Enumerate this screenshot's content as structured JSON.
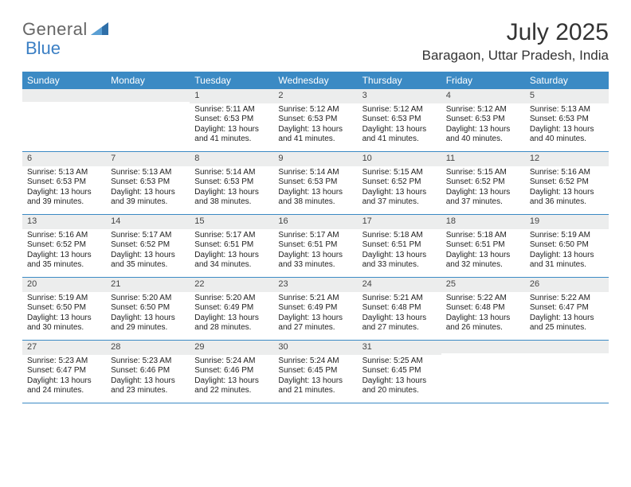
{
  "logo": {
    "text1": "General",
    "text2": "Blue"
  },
  "title": "July 2025",
  "location": "Baragaon, Uttar Pradesh, India",
  "colors": {
    "header_bg": "#3b8ac4",
    "header_text": "#ffffff",
    "daynum_bg": "#eceded",
    "row_border": "#3b8ac4",
    "body_text": "#222222",
    "logo_gray": "#666666",
    "logo_blue": "#3b7fc4"
  },
  "daynames": [
    "Sunday",
    "Monday",
    "Tuesday",
    "Wednesday",
    "Thursday",
    "Friday",
    "Saturday"
  ],
  "weeks": [
    [
      {
        "n": "",
        "sr": "",
        "ss": "",
        "dl": ""
      },
      {
        "n": "",
        "sr": "",
        "ss": "",
        "dl": ""
      },
      {
        "n": "1",
        "sr": "5:11 AM",
        "ss": "6:53 PM",
        "dl": "13 hours and 41 minutes."
      },
      {
        "n": "2",
        "sr": "5:12 AM",
        "ss": "6:53 PM",
        "dl": "13 hours and 41 minutes."
      },
      {
        "n": "3",
        "sr": "5:12 AM",
        "ss": "6:53 PM",
        "dl": "13 hours and 41 minutes."
      },
      {
        "n": "4",
        "sr": "5:12 AM",
        "ss": "6:53 PM",
        "dl": "13 hours and 40 minutes."
      },
      {
        "n": "5",
        "sr": "5:13 AM",
        "ss": "6:53 PM",
        "dl": "13 hours and 40 minutes."
      }
    ],
    [
      {
        "n": "6",
        "sr": "5:13 AM",
        "ss": "6:53 PM",
        "dl": "13 hours and 39 minutes."
      },
      {
        "n": "7",
        "sr": "5:13 AM",
        "ss": "6:53 PM",
        "dl": "13 hours and 39 minutes."
      },
      {
        "n": "8",
        "sr": "5:14 AM",
        "ss": "6:53 PM",
        "dl": "13 hours and 38 minutes."
      },
      {
        "n": "9",
        "sr": "5:14 AM",
        "ss": "6:53 PM",
        "dl": "13 hours and 38 minutes."
      },
      {
        "n": "10",
        "sr": "5:15 AM",
        "ss": "6:52 PM",
        "dl": "13 hours and 37 minutes."
      },
      {
        "n": "11",
        "sr": "5:15 AM",
        "ss": "6:52 PM",
        "dl": "13 hours and 37 minutes."
      },
      {
        "n": "12",
        "sr": "5:16 AM",
        "ss": "6:52 PM",
        "dl": "13 hours and 36 minutes."
      }
    ],
    [
      {
        "n": "13",
        "sr": "5:16 AM",
        "ss": "6:52 PM",
        "dl": "13 hours and 35 minutes."
      },
      {
        "n": "14",
        "sr": "5:17 AM",
        "ss": "6:52 PM",
        "dl": "13 hours and 35 minutes."
      },
      {
        "n": "15",
        "sr": "5:17 AM",
        "ss": "6:51 PM",
        "dl": "13 hours and 34 minutes."
      },
      {
        "n": "16",
        "sr": "5:17 AM",
        "ss": "6:51 PM",
        "dl": "13 hours and 33 minutes."
      },
      {
        "n": "17",
        "sr": "5:18 AM",
        "ss": "6:51 PM",
        "dl": "13 hours and 33 minutes."
      },
      {
        "n": "18",
        "sr": "5:18 AM",
        "ss": "6:51 PM",
        "dl": "13 hours and 32 minutes."
      },
      {
        "n": "19",
        "sr": "5:19 AM",
        "ss": "6:50 PM",
        "dl": "13 hours and 31 minutes."
      }
    ],
    [
      {
        "n": "20",
        "sr": "5:19 AM",
        "ss": "6:50 PM",
        "dl": "13 hours and 30 minutes."
      },
      {
        "n": "21",
        "sr": "5:20 AM",
        "ss": "6:50 PM",
        "dl": "13 hours and 29 minutes."
      },
      {
        "n": "22",
        "sr": "5:20 AM",
        "ss": "6:49 PM",
        "dl": "13 hours and 28 minutes."
      },
      {
        "n": "23",
        "sr": "5:21 AM",
        "ss": "6:49 PM",
        "dl": "13 hours and 27 minutes."
      },
      {
        "n": "24",
        "sr": "5:21 AM",
        "ss": "6:48 PM",
        "dl": "13 hours and 27 minutes."
      },
      {
        "n": "25",
        "sr": "5:22 AM",
        "ss": "6:48 PM",
        "dl": "13 hours and 26 minutes."
      },
      {
        "n": "26",
        "sr": "5:22 AM",
        "ss": "6:47 PM",
        "dl": "13 hours and 25 minutes."
      }
    ],
    [
      {
        "n": "27",
        "sr": "5:23 AM",
        "ss": "6:47 PM",
        "dl": "13 hours and 24 minutes."
      },
      {
        "n": "28",
        "sr": "5:23 AM",
        "ss": "6:46 PM",
        "dl": "13 hours and 23 minutes."
      },
      {
        "n": "29",
        "sr": "5:24 AM",
        "ss": "6:46 PM",
        "dl": "13 hours and 22 minutes."
      },
      {
        "n": "30",
        "sr": "5:24 AM",
        "ss": "6:45 PM",
        "dl": "13 hours and 21 minutes."
      },
      {
        "n": "31",
        "sr": "5:25 AM",
        "ss": "6:45 PM",
        "dl": "13 hours and 20 minutes."
      },
      {
        "n": "",
        "sr": "",
        "ss": "",
        "dl": ""
      },
      {
        "n": "",
        "sr": "",
        "ss": "",
        "dl": ""
      }
    ]
  ],
  "labels": {
    "sunrise": "Sunrise: ",
    "sunset": "Sunset: ",
    "daylight": "Daylight: "
  }
}
